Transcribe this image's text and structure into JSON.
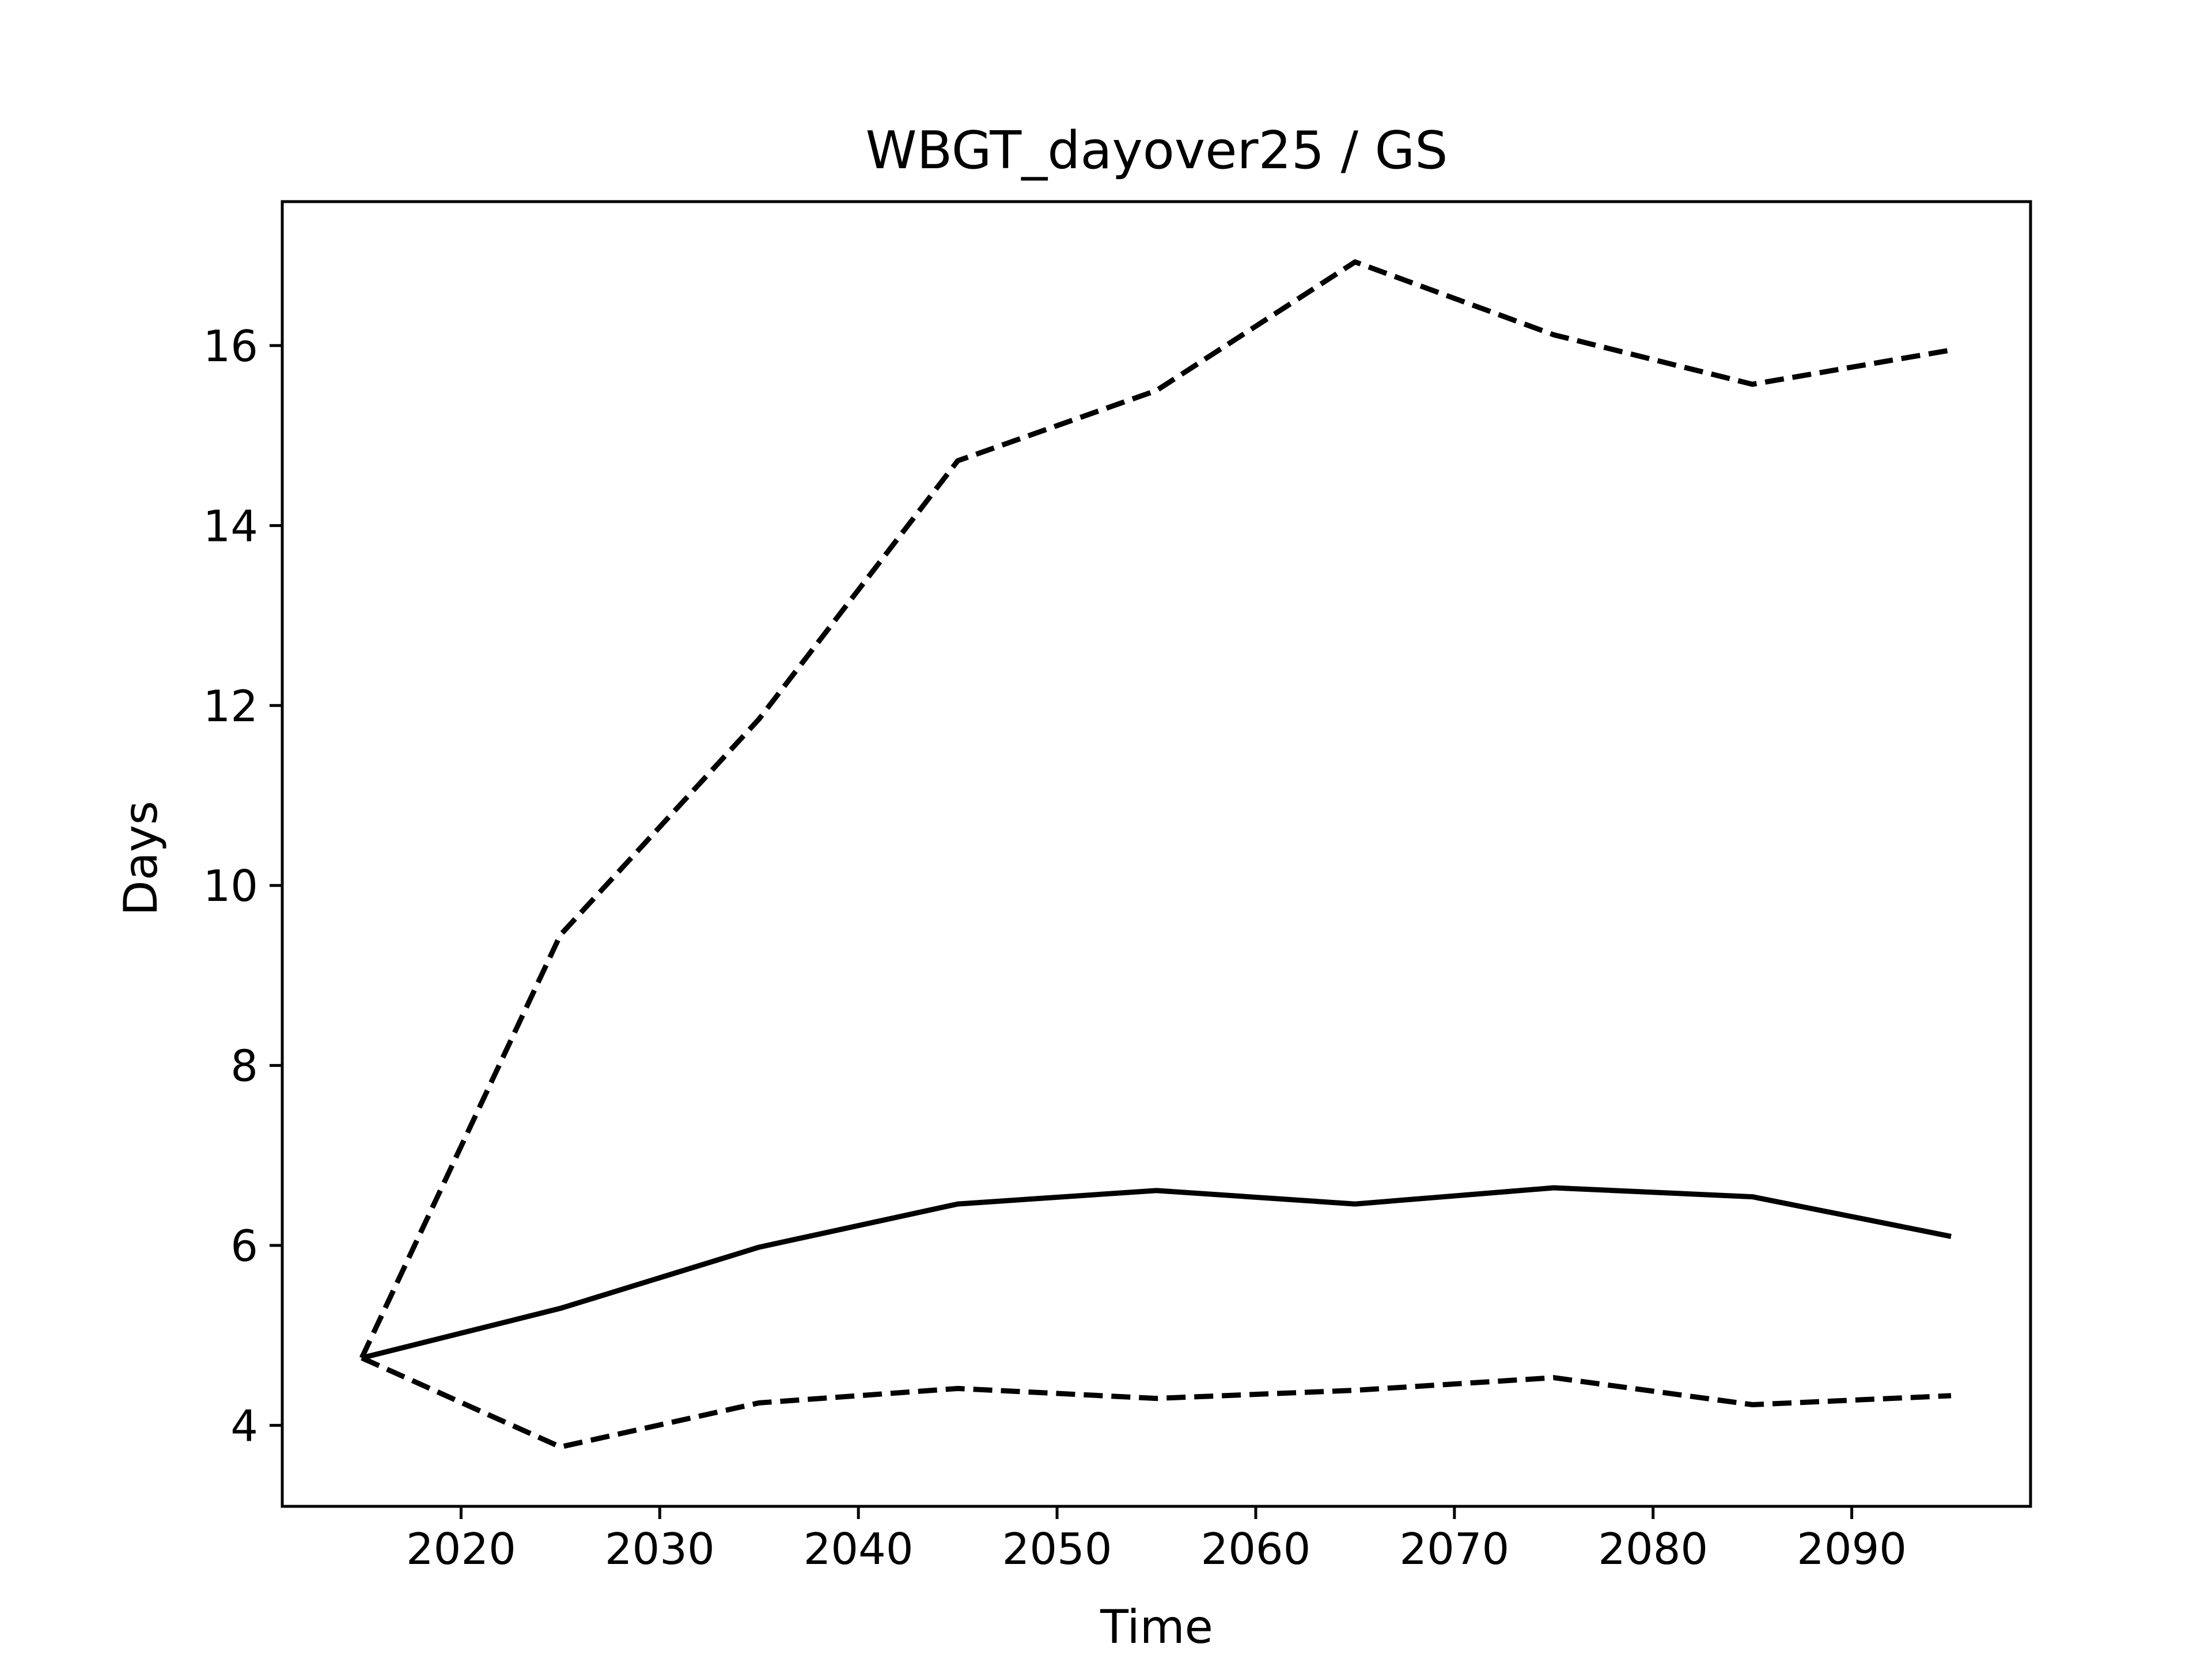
{
  "chart_data": {
    "type": "line",
    "title": "WBGT_dayover25 / GS",
    "xlabel": "Time",
    "ylabel": "Days",
    "xlim": [
      2011,
      2099
    ],
    "ylim": [
      3.1,
      17.6
    ],
    "x_ticks": [
      2020,
      2030,
      2040,
      2050,
      2060,
      2070,
      2080,
      2090
    ],
    "y_ticks": [
      4,
      6,
      8,
      10,
      12,
      14,
      16
    ],
    "grid": false,
    "x": [
      2015,
      2025,
      2035,
      2045,
      2055,
      2065,
      2075,
      2085,
      2095
    ],
    "series": [
      {
        "style": "solid",
        "color": "#000000",
        "values": [
          4.75,
          5.3,
          5.98,
          6.46,
          6.61,
          6.46,
          6.64,
          6.54,
          6.1
        ]
      },
      {
        "style": "dashed",
        "color": "#000000",
        "values": [
          4.75,
          9.45,
          11.85,
          14.72,
          15.5,
          16.93,
          16.12,
          15.57,
          15.95
        ]
      },
      {
        "style": "dashed",
        "color": "#000000",
        "values": [
          4.75,
          3.76,
          4.25,
          4.41,
          4.3,
          4.39,
          4.53,
          4.23,
          4.33
        ]
      }
    ]
  }
}
